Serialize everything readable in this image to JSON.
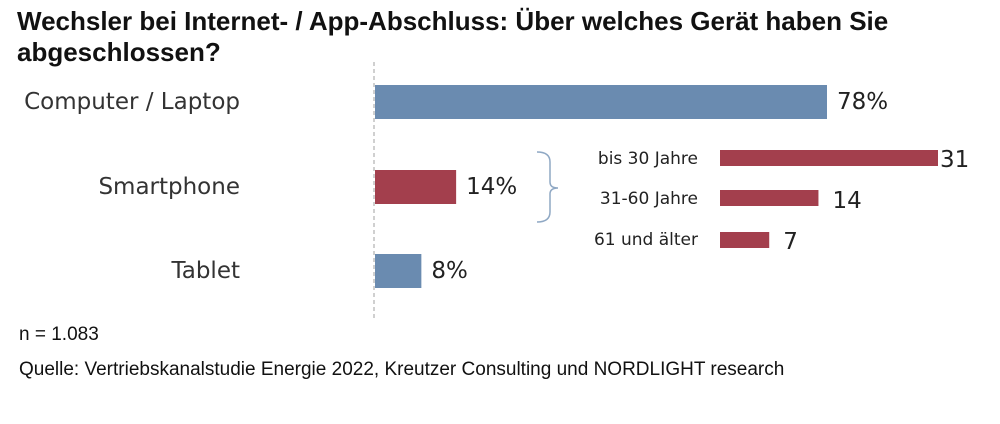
{
  "title": "Wechsler bei Internet- / App-Abschluss: Über welches Gerät haben Sie abgeschlossen?",
  "chart_data": {
    "type": "bar",
    "orientation": "horizontal",
    "categories": [
      "Computer / Laptop",
      "Smartphone",
      "Tablet"
    ],
    "values": [
      78,
      14,
      8
    ],
    "value_labels": [
      "78%",
      "14%",
      "8%"
    ],
    "unit": "%",
    "bar_colors": [
      "#6a8bb0",
      "#a33f4d",
      "#6a8bb0"
    ],
    "breakdown": {
      "of_category": "Smartphone",
      "categories": [
        "bis 30 Jahre",
        "31-60 Jahre",
        "61 und älter"
      ],
      "values": [
        31,
        14,
        7
      ],
      "value_labels": [
        "31",
        "14",
        "7"
      ],
      "color": "#a33f4d"
    },
    "axis_line": "dashed"
  },
  "notes": {
    "n": "n = 1.083",
    "source": "Quelle: Vertriebskanalstudie Energie 2022, Kreutzer Consulting und NORDLIGHT research"
  }
}
